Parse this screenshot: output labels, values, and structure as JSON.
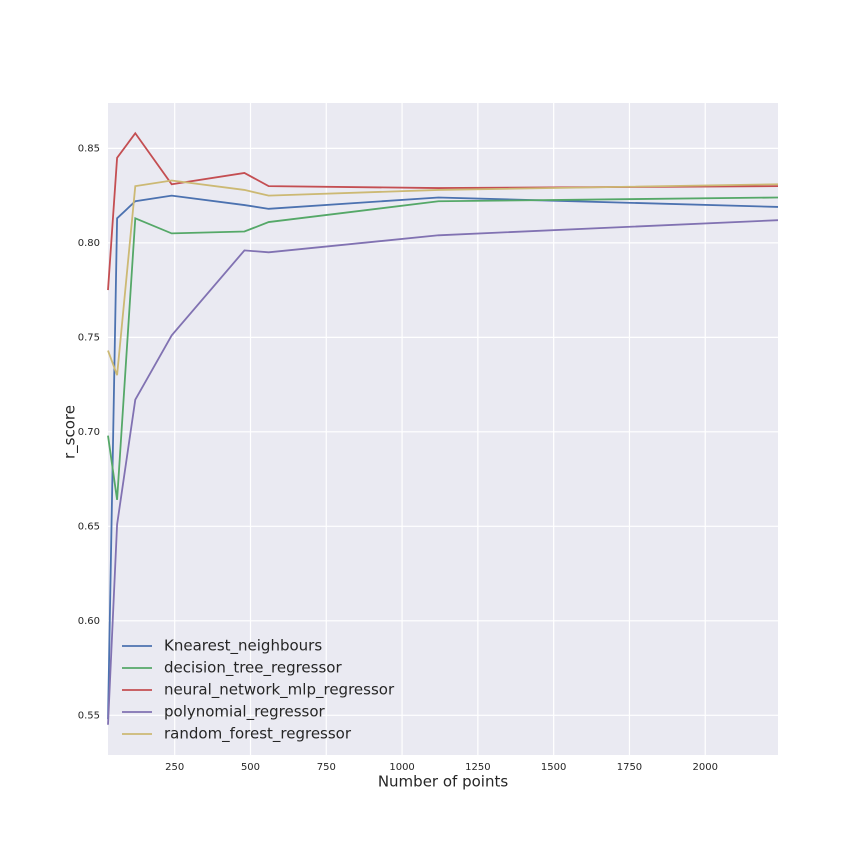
{
  "chart_data": {
    "type": "line",
    "xlabel": "Number of points",
    "ylabel": "r_score",
    "x": [
      30,
      60,
      120,
      240,
      480,
      560,
      1120,
      2240
    ],
    "series": [
      {
        "name": "Knearest_neighbours",
        "color": "#4c72b0",
        "values": [
          0.548,
          0.813,
          0.822,
          0.825,
          0.82,
          0.818,
          0.824,
          0.819
        ]
      },
      {
        "name": "decision_tree_regressor",
        "color": "#55a868",
        "values": [
          0.698,
          0.664,
          0.813,
          0.805,
          0.806,
          0.811,
          0.822,
          0.824
        ]
      },
      {
        "name": "neural_network_mlp_regressor",
        "color": "#c44e52",
        "values": [
          0.775,
          0.845,
          0.858,
          0.831,
          0.837,
          0.83,
          0.829,
          0.83
        ]
      },
      {
        "name": "polynomial_regressor",
        "color": "#8172b2",
        "values": [
          0.545,
          0.651,
          0.717,
          0.751,
          0.796,
          0.795,
          0.804,
          0.812
        ]
      },
      {
        "name": "random_forest_regressor",
        "color": "#ccb974",
        "values": [
          0.743,
          0.73,
          0.83,
          0.833,
          0.828,
          0.825,
          0.828,
          0.831
        ]
      }
    ],
    "xlim": [
      30,
      2240
    ],
    "ylim": [
      0.529,
      0.874
    ],
    "xticks": [
      250,
      500,
      750,
      1000,
      1250,
      1500,
      1750,
      2000
    ],
    "yticks": [
      0.55,
      {
        "value": 0.6,
        "label": "0.60"
      },
      0.65,
      {
        "value": 0.7,
        "label": "0.70"
      },
      0.75,
      {
        "value": 0.8,
        "label": "0.80"
      },
      0.85
    ],
    "grid": true,
    "legend": "lower left"
  }
}
